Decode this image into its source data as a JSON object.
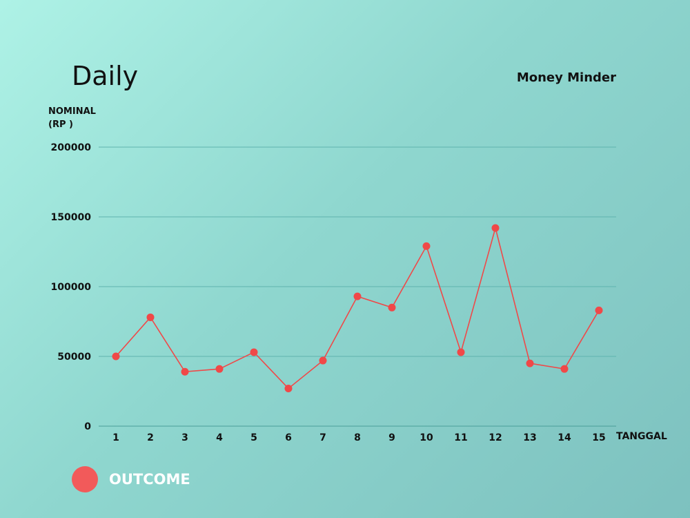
{
  "chart_data": {
    "type": "line",
    "title": "Daily",
    "brand": "Money Minder",
    "ylabel_line1": "NOMINAL",
    "ylabel_line2": "(RP )",
    "xlabel": "TANGGAL",
    "ylim": [
      0,
      200000
    ],
    "yticks": [
      "0",
      "50000",
      "100000",
      "150000",
      "200000"
    ],
    "x": [
      "1",
      "2",
      "3",
      "4",
      "5",
      "6",
      "7",
      "8",
      "9",
      "10",
      "11",
      "12",
      "13",
      "14",
      "15"
    ],
    "series": [
      {
        "name": "OUTCOME",
        "color": "#f04848",
        "values": [
          50000,
          78000,
          39000,
          41000,
          53000,
          27000,
          47000,
          93000,
          85000,
          129000,
          53000,
          142000,
          45000,
          41000,
          83000
        ]
      }
    ],
    "grid": true,
    "legend_position": "bottom-left"
  },
  "colors": {
    "line": "#f04848",
    "point": "#f04848",
    "legend_dot": "#f25a5a",
    "grid": "#5fb3ae"
  }
}
